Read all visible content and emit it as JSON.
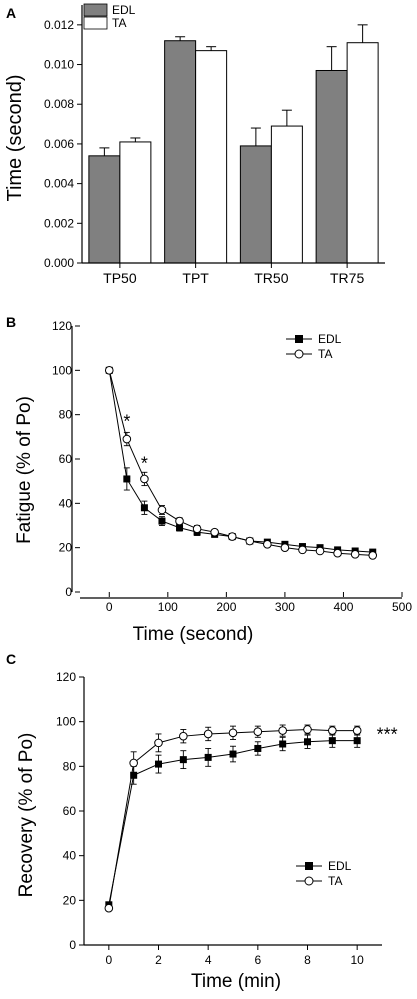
{
  "chart_data": [
    {
      "panel": "A",
      "type": "bar",
      "title": "",
      "xlabel": "",
      "ylabel": "Time (second)",
      "ylim": [
        0,
        0.013
      ],
      "yticks": [
        "0.000",
        "0.002",
        "0.004",
        "0.006",
        "0.008",
        "0.010",
        "0.012"
      ],
      "categories": [
        "TP50",
        "TPT",
        "TR50",
        "TR75"
      ],
      "series": [
        {
          "name": "EDL",
          "color": "#808080",
          "values": [
            0.0054,
            0.0112,
            0.0059,
            0.0097
          ],
          "errors": [
            0.0004,
            0.0002,
            0.0009,
            0.0012
          ]
        },
        {
          "name": "TA",
          "color": "#ffffff",
          "values": [
            0.0061,
            0.0107,
            0.0069,
            0.0111
          ],
          "errors": [
            0.0002,
            0.0002,
            0.0008,
            0.0009
          ]
        }
      ],
      "legend": "top-left"
    },
    {
      "panel": "B",
      "type": "line",
      "title": "",
      "xlabel": "Time (second)",
      "ylabel": "Fatigue (% of Po)",
      "xlim": [
        -50,
        500
      ],
      "ylim": [
        0,
        120
      ],
      "xticks": [
        "0",
        "100",
        "200",
        "300",
        "400",
        "500"
      ],
      "yticks": [
        "0",
        "20",
        "40",
        "60",
        "80",
        "100",
        "120"
      ],
      "x": [
        0,
        30,
        60,
        90,
        120,
        150,
        180,
        210,
        240,
        270,
        300,
        330,
        360,
        390,
        420,
        450
      ],
      "series": [
        {
          "name": "EDL",
          "marker": "filled-square",
          "values": [
            100,
            51,
            38,
            32,
            29,
            27,
            26,
            25,
            23,
            22.5,
            21.5,
            20.5,
            20,
            19,
            18.5,
            18
          ],
          "errors": [
            1,
            5,
            3,
            2,
            1.5,
            1.5,
            1,
            1,
            1,
            1,
            1,
            1,
            1,
            1,
            1,
            1
          ]
        },
        {
          "name": "TA",
          "marker": "open-circle",
          "values": [
            100,
            69,
            51,
            37,
            32,
            28.5,
            27,
            25,
            23,
            21.5,
            20,
            19,
            18.5,
            17.5,
            17,
            16.5
          ],
          "errors": [
            1,
            3,
            3,
            2,
            1.5,
            1.5,
            1,
            1,
            1,
            1,
            1,
            1,
            1,
            1,
            1,
            1
          ]
        }
      ],
      "annotations": [
        {
          "text": "*",
          "x": 30,
          "y": 77
        },
        {
          "text": "*",
          "x": 60,
          "y": 58
        }
      ],
      "legend": "top-right"
    },
    {
      "panel": "C",
      "type": "line",
      "title": "",
      "xlabel": "Time (min)",
      "ylabel": "Recovery (% of Po)",
      "xlim": [
        -1,
        11
      ],
      "ylim": [
        0,
        120
      ],
      "xticks": [
        "0",
        "2",
        "4",
        "6",
        "8",
        "10"
      ],
      "yticks": [
        "0",
        "20",
        "40",
        "60",
        "80",
        "100",
        "120"
      ],
      "x": [
        0,
        1,
        2,
        3,
        4,
        5,
        6,
        7,
        8,
        9,
        10
      ],
      "series": [
        {
          "name": "EDL",
          "marker": "filled-square",
          "values": [
            18,
            76,
            81,
            83,
            84,
            85.5,
            88,
            90,
            91,
            91.5,
            91.5
          ],
          "errors": [
            1,
            4,
            4,
            4,
            4,
            3.5,
            3,
            3,
            3,
            3,
            3
          ]
        },
        {
          "name": "TA",
          "marker": "open-circle",
          "values": [
            16.5,
            81.5,
            90.5,
            93.5,
            94.5,
            95,
            95.5,
            96,
            96.5,
            96,
            96
          ],
          "errors": [
            1,
            5,
            4,
            3,
            3,
            3,
            2.5,
            2.5,
            2,
            2,
            2
          ]
        }
      ],
      "annotations": [
        {
          "text": "***",
          "x": 10,
          "y": 96
        }
      ],
      "legend": "bottom-right"
    }
  ]
}
